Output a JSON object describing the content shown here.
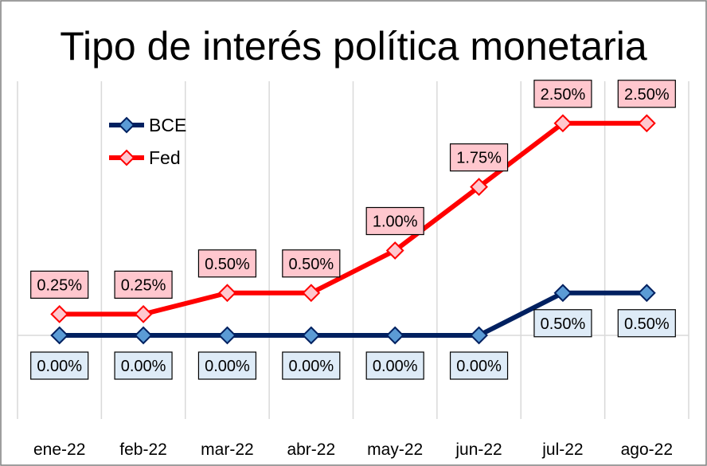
{
  "chart_data": {
    "type": "line",
    "title": "Tipo de interés política monetaria",
    "xlabel": "",
    "ylabel": "",
    "categories": [
      "ene-22",
      "feb-22",
      "mar-22",
      "abr-22",
      "may-22",
      "jun-22",
      "jul-22",
      "ago-22"
    ],
    "ylim": [
      -1.0,
      3.0
    ],
    "grid": "vertical",
    "legend": "top-left",
    "series": [
      {
        "name": "BCE",
        "values": [
          0.0,
          0.0,
          0.0,
          0.0,
          0.0,
          0.0,
          0.5,
          0.5
        ],
        "labels": [
          "0.00%",
          "0.00%",
          "0.00%",
          "0.00%",
          "0.00%",
          "0.00%",
          "0.50%",
          "0.50%"
        ],
        "color": "#002060",
        "marker_color": "#5b9bd5",
        "label_fill": "#deebf7",
        "label_position": "below"
      },
      {
        "name": "Fed",
        "values": [
          0.25,
          0.25,
          0.5,
          0.5,
          1.0,
          1.75,
          2.5,
          2.5
        ],
        "labels": [
          "0.25%",
          "0.25%",
          "0.50%",
          "0.50%",
          "1.00%",
          "1.75%",
          "2.50%",
          "2.50%"
        ],
        "color": "#ff0000",
        "marker_color": "#ffc7ce",
        "label_fill": "#ffc7ce",
        "label_position": "above"
      }
    ]
  }
}
